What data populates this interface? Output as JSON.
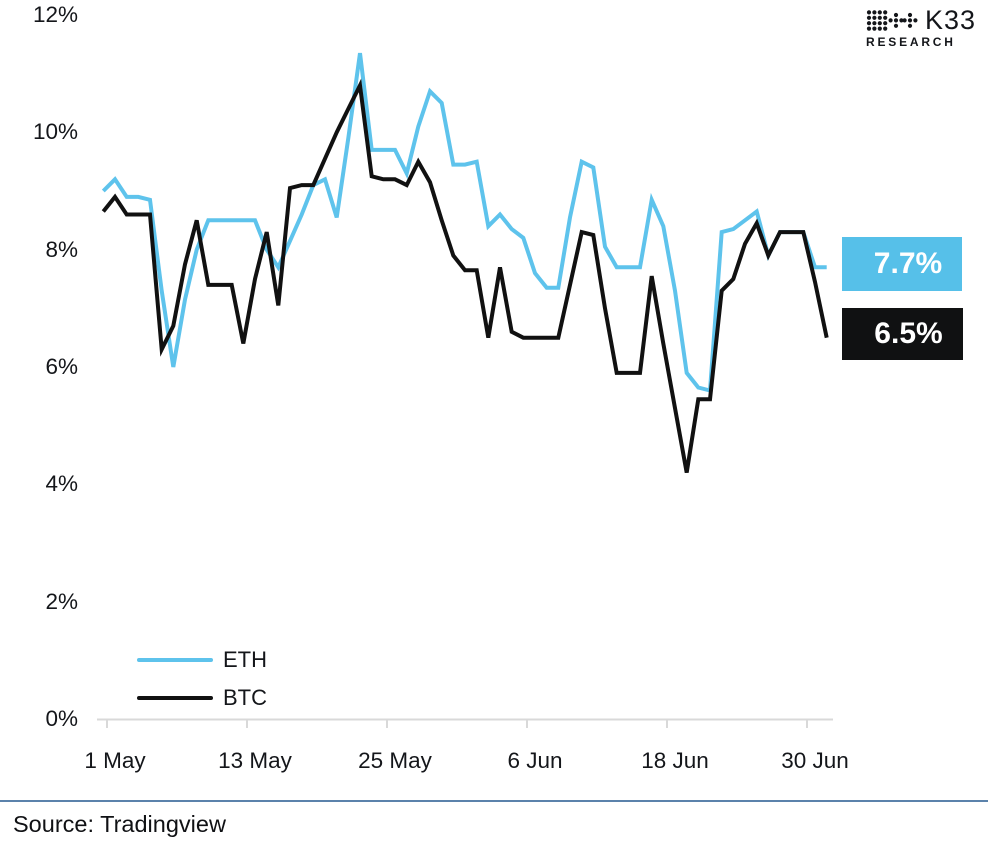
{
  "logo": {
    "brand": "K33",
    "sub": "RESEARCH"
  },
  "source": {
    "label": "Source: Tradingview"
  },
  "chart_data": {
    "type": "line",
    "title": "",
    "xlabel": "",
    "ylabel": "",
    "ylim": [
      0,
      12
    ],
    "grid": false,
    "legend_position": "bottom-left",
    "y_ticks": [
      0,
      2,
      4,
      6,
      8,
      10,
      12
    ],
    "y_tick_suffix": "%",
    "x_tick_labels": [
      "1 May",
      "13 May",
      "25 May",
      "6 Jun",
      "18 Jun",
      "30 Jun"
    ],
    "x_tick_indices": [
      1,
      13,
      25,
      37,
      49,
      61
    ],
    "categories": [
      "30 Apr",
      "1 May",
      "2 May",
      "3 May",
      "4 May",
      "5 May",
      "6 May",
      "7 May",
      "8 May",
      "9 May",
      "10 May",
      "11 May",
      "12 May",
      "13 May",
      "14 May",
      "15 May",
      "16 May",
      "17 May",
      "18 May",
      "19 May",
      "20 May",
      "21 May",
      "22 May",
      "23 May",
      "24 May",
      "25 May",
      "26 May",
      "27 May",
      "28 May",
      "29 May",
      "30 May",
      "31 May",
      "1 Jun",
      "2 Jun",
      "3 Jun",
      "4 Jun",
      "5 Jun",
      "6 Jun",
      "7 Jun",
      "8 Jun",
      "9 Jun",
      "10 Jun",
      "11 Jun",
      "12 Jun",
      "13 Jun",
      "14 Jun",
      "15 Jun",
      "16 Jun",
      "17 Jun",
      "18 Jun",
      "19 Jun",
      "20 Jun",
      "21 Jun",
      "22 Jun",
      "23 Jun",
      "24 Jun",
      "25 Jun",
      "26 Jun",
      "27 Jun",
      "28 Jun",
      "29 Jun",
      "30 Jun",
      "1 Jul"
    ],
    "series": [
      {
        "name": "ETH",
        "color": "#5EC3EC",
        "values": [
          9.0,
          9.2,
          8.9,
          8.9,
          8.85,
          7.3,
          6.0,
          7.15,
          8.0,
          8.5,
          8.5,
          8.5,
          8.5,
          8.5,
          8.0,
          7.7,
          8.15,
          8.6,
          9.1,
          9.2,
          8.55,
          9.9,
          11.35,
          9.7,
          9.7,
          9.7,
          9.3,
          10.1,
          10.7,
          10.5,
          9.45,
          9.45,
          9.5,
          8.4,
          8.6,
          8.35,
          8.2,
          7.6,
          7.35,
          7.35,
          8.55,
          9.5,
          9.4,
          8.05,
          7.7,
          7.7,
          7.7,
          8.85,
          8.4,
          7.3,
          5.9,
          5.65,
          5.6,
          8.3,
          8.35,
          8.5,
          8.65,
          7.9,
          8.3,
          8.3,
          8.3,
          7.7,
          7.7
        ]
      },
      {
        "name": "BTC",
        "color": "#111111",
        "values": [
          8.65,
          8.9,
          8.6,
          8.6,
          8.6,
          6.3,
          6.7,
          7.75,
          8.5,
          7.4,
          7.4,
          7.4,
          6.4,
          7.5,
          8.3,
          7.05,
          9.05,
          9.1,
          9.1,
          9.55,
          10.0,
          10.4,
          10.8,
          9.25,
          9.2,
          9.2,
          9.1,
          9.5,
          9.15,
          8.5,
          7.9,
          7.65,
          7.65,
          6.5,
          7.7,
          6.6,
          6.5,
          6.5,
          6.5,
          6.5,
          7.4,
          8.3,
          8.25,
          7.0,
          5.9,
          5.9,
          5.9,
          7.55,
          6.4,
          5.3,
          4.2,
          5.45,
          5.45,
          7.3,
          7.5,
          8.1,
          8.45,
          7.9,
          8.3,
          8.3,
          8.3,
          7.45,
          6.5
        ]
      }
    ],
    "end_labels": {
      "eth": "7.7%",
      "btc": "6.5%"
    },
    "end_label_colors": {
      "eth_bg": "#56C0E9",
      "btc_bg": "#101112"
    },
    "axis_color": "#d9d9d9"
  }
}
